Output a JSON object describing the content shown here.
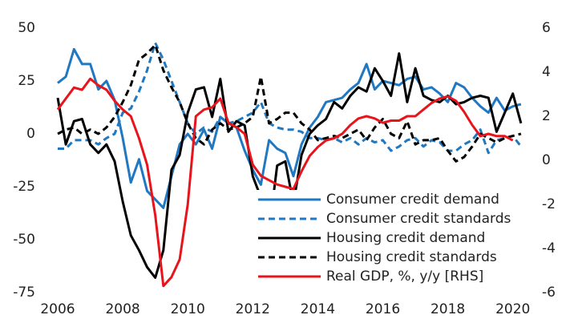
{
  "chart_data": {
    "type": "line",
    "x": [
      2006,
      2006.25,
      2006.5,
      2006.75,
      2007,
      2007.25,
      2007.5,
      2007.75,
      2008,
      2008.25,
      2008.5,
      2008.75,
      2009,
      2009.25,
      2009.5,
      2009.75,
      2010,
      2010.25,
      2010.5,
      2010.75,
      2011,
      2011.25,
      2011.5,
      2011.75,
      2012,
      2012.25,
      2012.5,
      2012.75,
      2013,
      2013.25,
      2013.5,
      2013.75,
      2014,
      2014.25,
      2014.5,
      2014.75,
      2015,
      2015.25,
      2015.5,
      2015.75,
      2016,
      2016.25,
      2016.5,
      2016.75,
      2017,
      2017.25,
      2017.5,
      2017.75,
      2018,
      2018.25,
      2018.5,
      2018.75,
      2019,
      2019.25,
      2019.5,
      2019.75,
      2020,
      2020.25
    ],
    "xlim": [
      2006,
      2020.5
    ],
    "xticks": [
      2006,
      2008,
      2010,
      2012,
      2014,
      2016,
      2018,
      2020
    ],
    "ylim": [
      -75,
      50
    ],
    "yticks": [
      -75,
      -50,
      -25,
      0,
      25,
      50
    ],
    "y2lim": [
      -6,
      6
    ],
    "y2ticks": [
      -6,
      -4,
      -2,
      0,
      2,
      4,
      6
    ],
    "series": [
      {
        "name": "Consumer credit demand",
        "color": "#1f78c1",
        "style": "solid",
        "values": [
          24,
          27,
          40,
          33,
          33,
          21,
          25,
          16,
          -2,
          -23,
          -12,
          -27,
          -31,
          -35,
          -20,
          -5,
          0,
          -5,
          2,
          -7,
          8,
          5,
          3,
          -8,
          -17,
          -24,
          -3,
          -7,
          -9,
          -20,
          -5,
          3,
          8,
          15,
          16,
          17,
          21,
          24,
          33,
          21,
          25,
          24,
          23,
          26,
          27,
          21,
          22,
          19,
          15,
          24,
          22,
          17,
          13,
          10,
          17,
          11,
          13,
          14
        ]
      },
      {
        "name": "Consumer credit standards",
        "color": "#1f78c1",
        "style": "dashed",
        "values": [
          -7,
          -7,
          -3,
          -3,
          -3,
          -5,
          -2,
          0,
          10,
          12,
          20,
          30,
          43,
          35,
          25,
          15,
          5,
          0,
          3,
          1,
          8,
          5,
          6,
          8,
          10,
          15,
          5,
          3,
          2,
          2,
          1,
          -2,
          -2,
          -3,
          -2,
          -4,
          -2,
          -5,
          -2,
          -4,
          -3,
          -8,
          -6,
          -3,
          -2,
          -6,
          -3,
          -4,
          -8,
          -8,
          -5,
          -3,
          2,
          -9,
          -3,
          -2,
          -1,
          -6
        ]
      },
      {
        "name": "Housing credit demand",
        "color": "#000000",
        "style": "solid",
        "values": [
          17,
          -5,
          6,
          7,
          -5,
          -9,
          -5,
          -13,
          -32,
          -48,
          -55,
          -63,
          -68,
          -55,
          -17,
          -10,
          10,
          21,
          22,
          8,
          26,
          1,
          6,
          4,
          -20,
          -30,
          -46,
          -15,
          -13,
          -33,
          -10,
          0,
          4,
          7,
          15,
          12,
          18,
          22,
          20,
          31,
          25,
          18,
          38,
          15,
          31,
          18,
          16,
          15,
          18,
          14,
          15,
          17,
          18,
          17,
          1,
          10,
          19,
          5
        ]
      },
      {
        "name": "Housing credit standards",
        "color": "#000000",
        "style": "dashed",
        "values": [
          0,
          2,
          3,
          0,
          2,
          0,
          3,
          8,
          15,
          23,
          35,
          38,
          42,
          30,
          22,
          15,
          5,
          -2,
          -5,
          2,
          5,
          2,
          3,
          5,
          8,
          27,
          5,
          7,
          10,
          10,
          5,
          2,
          -3,
          -2,
          -1,
          -2,
          0,
          2,
          -3,
          3,
          7,
          0,
          -2,
          6,
          -5,
          -3,
          -3,
          -2,
          -8,
          -13,
          -11,
          -6,
          0,
          -2,
          -4,
          -2,
          -1,
          0
        ]
      },
      {
        "name": "Real GDP, %, y/y [RHS]",
        "color": "#e8141c",
        "style": "solid",
        "axis": "y2",
        "values": [
          2.3,
          2.8,
          3.3,
          3.2,
          3.7,
          3.4,
          3.2,
          2.7,
          2.3,
          2.0,
          1.0,
          -0.2,
          -2.5,
          -5.7,
          -5.3,
          -4.5,
          -2.0,
          2.0,
          2.3,
          2.4,
          2.8,
          1.7,
          1.5,
          1.2,
          -0.2,
          -0.7,
          -0.9,
          -1.1,
          -1.2,
          -1.3,
          -0.5,
          0.2,
          0.6,
          0.9,
          1.0,
          1.2,
          1.6,
          1.9,
          2.0,
          1.9,
          1.7,
          1.8,
          1.8,
          2.0,
          2.0,
          2.3,
          2.6,
          2.8,
          2.9,
          2.7,
          2.2,
          1.6,
          1.1,
          1.2,
          1.1,
          1.1,
          0.9,
          null
        ]
      }
    ]
  }
}
